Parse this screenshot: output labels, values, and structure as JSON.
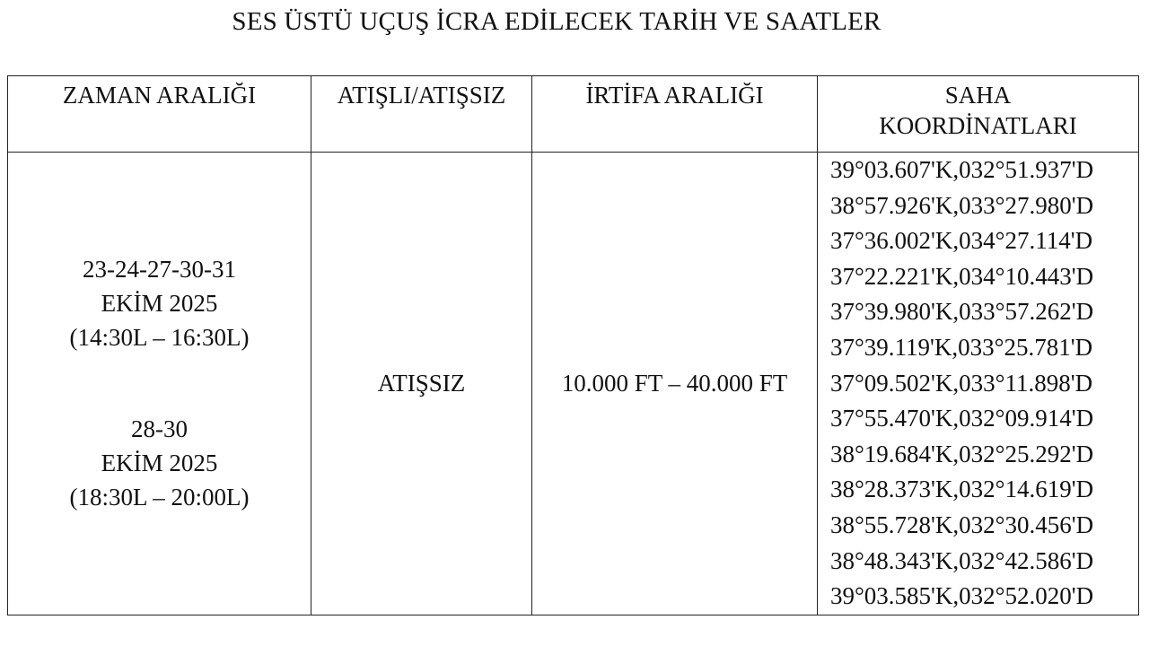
{
  "title": "SES ÜSTÜ UÇUŞ İCRA EDİLECEK TARİH VE SAATLER",
  "headers": [
    "ZAMAN ARALIĞI",
    "ATIŞLI/ATIŞSIZ",
    "İRTİFA ARALIĞI",
    "SAHA KOORDİNATLARI"
  ],
  "row": {
    "time_ranges": [
      {
        "days": "23-24-27-30-31",
        "month": "EKİM 2025",
        "hours": "(14:30L – 16:30L)"
      },
      {
        "days": "28-30",
        "month": "EKİM 2025",
        "hours": "(18:30L – 20:00L)"
      }
    ],
    "firing": "ATIŞSIZ",
    "altitude": "10.000 FT – 40.000 FT",
    "coordinates": [
      "39°03.607'K,032°51.937'D",
      "38°57.926'K,033°27.980'D",
      "37°36.002'K,034°27.114'D",
      "37°22.221'K,034°10.443'D",
      "37°39.980'K,033°57.262'D",
      "37°39.119'K,033°25.781'D",
      "37°09.502'K,033°11.898'D",
      "37°55.470'K,032°09.914'D",
      "38°19.684'K,032°25.292'D",
      "38°28.373'K,032°14.619'D",
      "38°55.728'K,032°30.456'D",
      "38°48.343'K,032°42.586'D",
      "39°03.585'K,032°52.020'D"
    ]
  }
}
